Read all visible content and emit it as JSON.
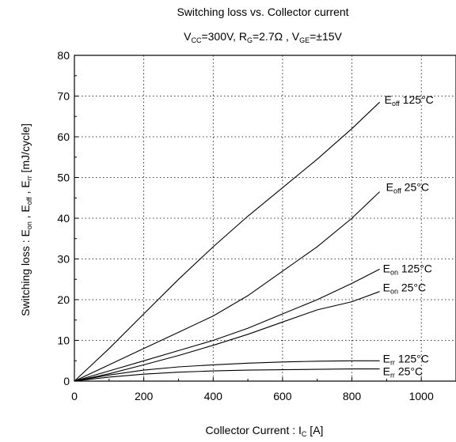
{
  "chart_data": {
    "type": "line",
    "title": "Switching loss vs. Collector current",
    "subtitle": {
      "vcc": {
        "main": "V",
        "sub": "CC",
        "rest": "=300V, "
      },
      "rg": {
        "main": "R",
        "sub": "G",
        "rest": "=2.7Ω , "
      },
      "vge": {
        "main": "V",
        "sub": "GE",
        "rest": "=±15V"
      }
    },
    "xlabel": {
      "main": "Collector Current : I",
      "sub": "C",
      "rest": "  [A]"
    },
    "ylabel": {
      "p1": "Switching loss : E",
      "s1": "on",
      "p2": " , E",
      "s2": "off",
      "p3": " , E",
      "s3": "rr",
      "p4": "  [mJ/cycle]"
    },
    "xlim": [
      0,
      1100
    ],
    "ylim": [
      0,
      80
    ],
    "xticks": [
      "0",
      "200",
      "400",
      "600",
      "800",
      "1000"
    ],
    "xtick_values": [
      0,
      200,
      400,
      600,
      800,
      1000
    ],
    "yticks": [
      "0",
      "10",
      "20",
      "30",
      "40",
      "50",
      "60",
      "70",
      "80"
    ],
    "ytick_values": [
      0,
      10,
      20,
      30,
      40,
      50,
      60,
      70,
      80
    ],
    "grid": true,
    "series": [
      {
        "name": {
          "main": "E",
          "sub": "off",
          "rest": " 125°C"
        },
        "x": [
          0,
          100,
          200,
          300,
          400,
          500,
          600,
          700,
          800,
          880
        ],
        "y": [
          0,
          8,
          16.5,
          25,
          33,
          40.5,
          47.5,
          54.5,
          62,
          68.5
        ],
        "label_at": [
          880,
          68.5
        ]
      },
      {
        "name": {
          "main": "E",
          "sub": "off",
          "rest": " 25°C"
        },
        "x": [
          0,
          100,
          200,
          300,
          400,
          500,
          600,
          700,
          800,
          880
        ],
        "y": [
          0,
          4,
          8,
          12,
          16,
          21,
          27,
          33,
          40,
          46.5
        ],
        "label_at": [
          880,
          46.5
        ]
      },
      {
        "name": {
          "main": "E",
          "sub": "on",
          "rest": " 125°C"
        },
        "x": [
          0,
          100,
          200,
          300,
          400,
          500,
          600,
          700,
          800,
          880
        ],
        "y": [
          0,
          2.5,
          5,
          7.5,
          10,
          13,
          16.5,
          20,
          24,
          27.5
        ],
        "label_at": [
          880,
          27.5
        ]
      },
      {
        "name": {
          "main": "E",
          "sub": "on",
          "rest": " 25°C"
        },
        "x": [
          0,
          100,
          200,
          300,
          400,
          500,
          600,
          700,
          800,
          880
        ],
        "y": [
          0,
          1.8,
          4,
          6.3,
          8.8,
          11.5,
          14.5,
          17.5,
          19.5,
          22
        ],
        "label_at": [
          880,
          22
        ]
      },
      {
        "name": {
          "main": "E",
          "sub": "rr",
          "rest": " 125°C"
        },
        "x": [
          0,
          100,
          200,
          300,
          400,
          500,
          600,
          700,
          800,
          880
        ],
        "y": [
          0,
          1.5,
          2.7,
          3.5,
          4,
          4.4,
          4.7,
          4.9,
          5,
          5
        ],
        "label_at": [
          880,
          5
        ]
      },
      {
        "name": {
          "main": "E",
          "sub": "rr",
          "rest": " 25°C"
        },
        "x": [
          0,
          100,
          200,
          300,
          400,
          500,
          600,
          700,
          800,
          880
        ],
        "y": [
          0,
          1,
          1.7,
          2.2,
          2.5,
          2.7,
          2.8,
          2.9,
          3,
          3
        ],
        "label_at": [
          880,
          3
        ]
      }
    ]
  }
}
